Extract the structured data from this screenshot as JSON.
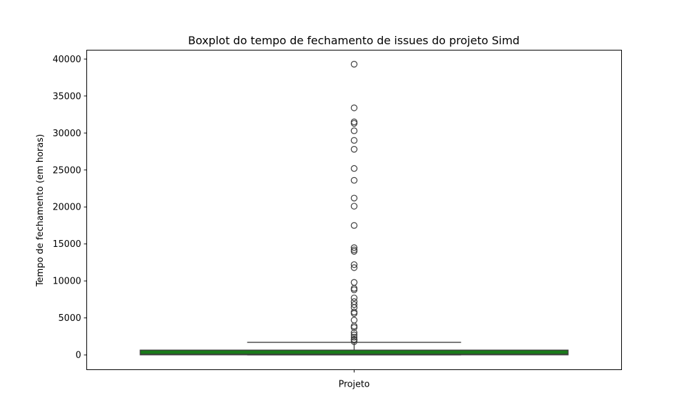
{
  "chart_data": {
    "type": "box",
    "title": "Boxplot do tempo de fechamento de issues do projeto Simd",
    "xlabel": "",
    "ylabel": "Tempo de fechamento (em horas)",
    "categories": [
      "Projeto"
    ],
    "ylim": [
      -2000,
      41200
    ],
    "yticks": [
      0,
      5000,
      10000,
      15000,
      20000,
      25000,
      30000,
      35000,
      40000
    ],
    "ytick_labels": [
      "0",
      "5000",
      "10000",
      "15000",
      "20000",
      "25000",
      "30000",
      "35000",
      "40000"
    ],
    "grid": false,
    "box_color": "#1a7a1a",
    "boxes": [
      {
        "category": "Projeto",
        "whisker_low": 0,
        "q1": 10,
        "median": 90,
        "q3": 650,
        "whisker_high": 1700,
        "outliers": [
          1800,
          2000,
          2100,
          2400,
          2700,
          3000,
          3700,
          3900,
          4700,
          5600,
          5800,
          6400,
          6800,
          7200,
          7700,
          8800,
          9000,
          9800,
          11800,
          12200,
          14000,
          14200,
          14500,
          17500,
          20100,
          21200,
          23600,
          25200,
          27800,
          29000,
          30300,
          31300,
          31500,
          33400,
          39300
        ]
      }
    ]
  }
}
